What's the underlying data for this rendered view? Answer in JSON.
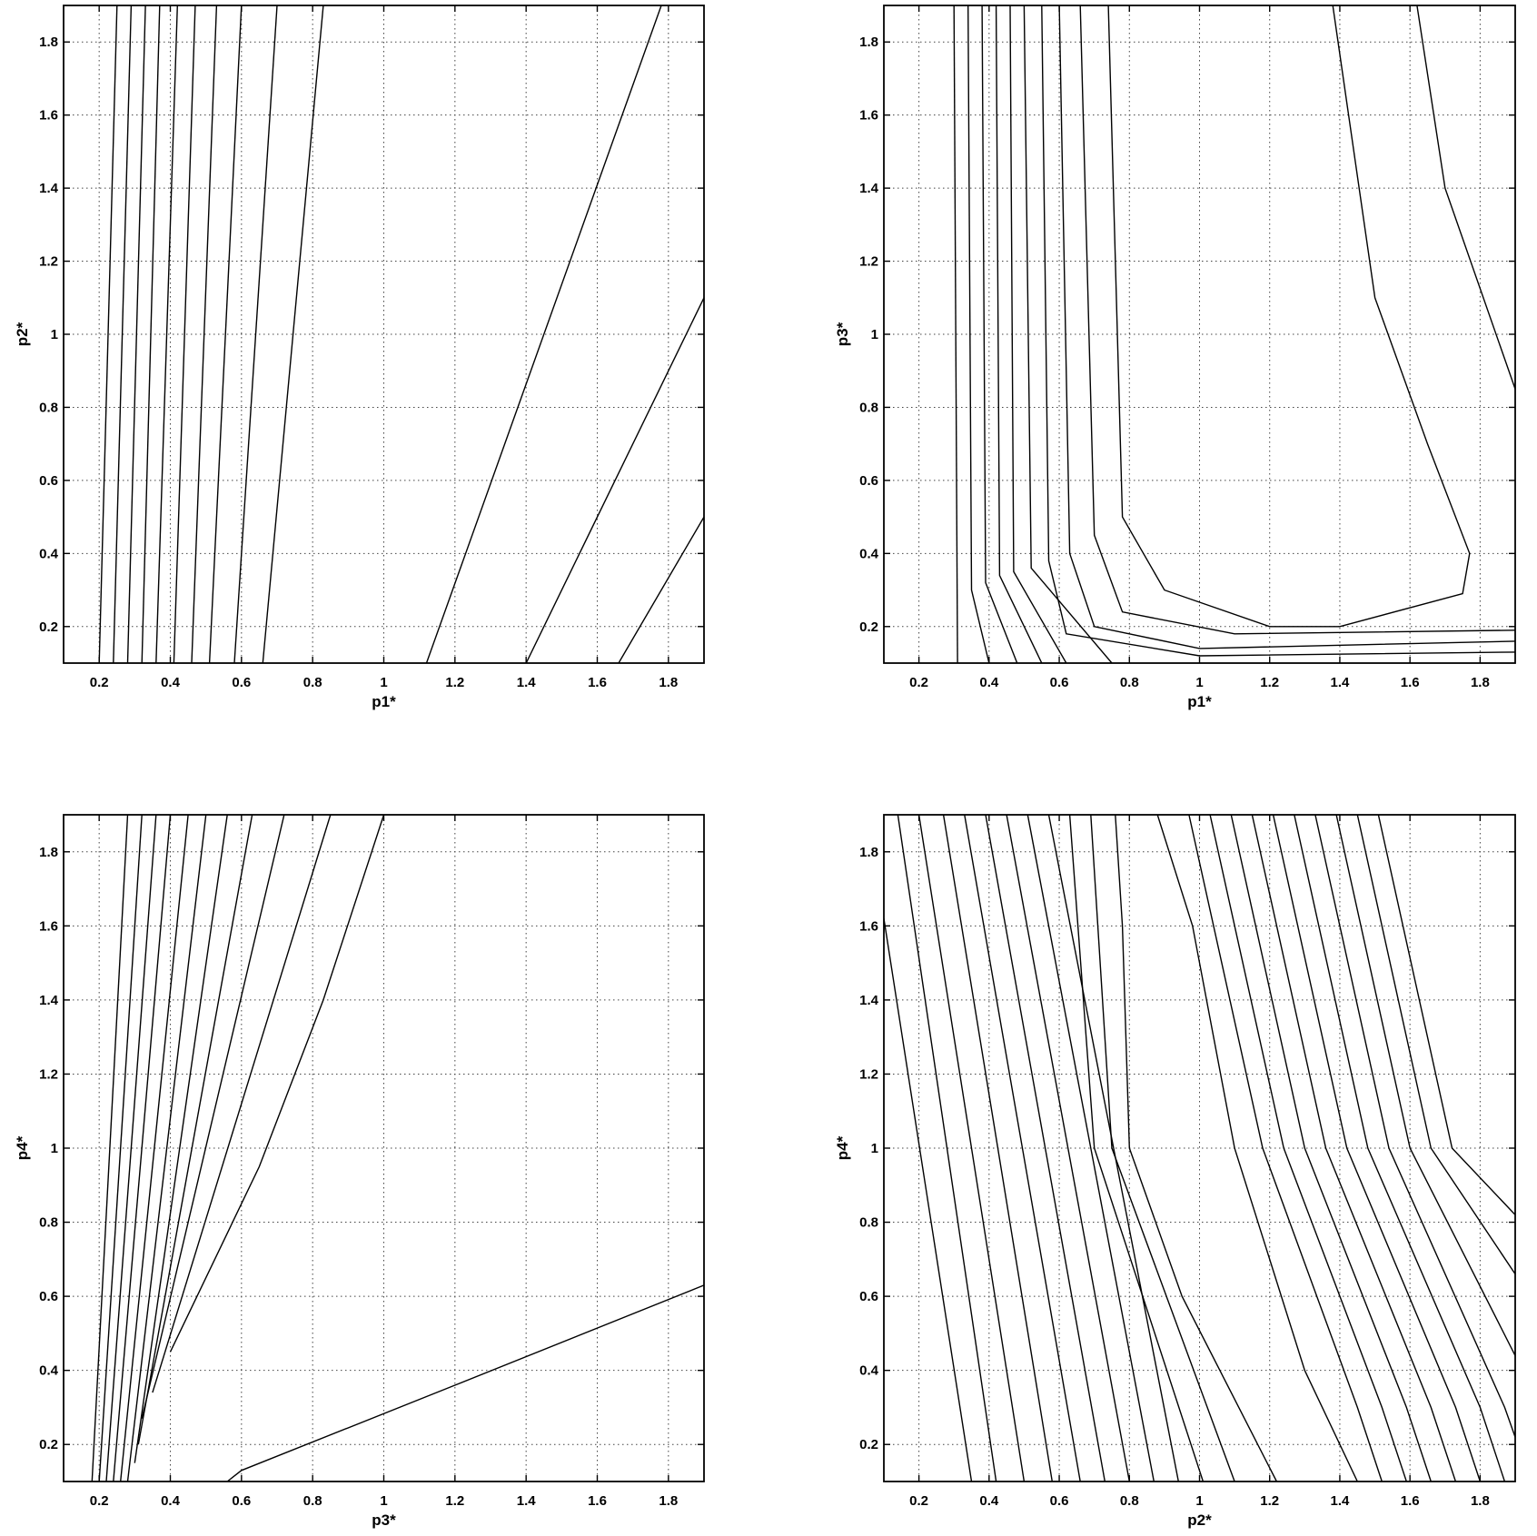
{
  "chart_data": [
    {
      "type": "contour",
      "xlabel": "p1*",
      "ylabel": "p2*",
      "xlim": [
        0.1,
        1.9
      ],
      "ylim": [
        0.1,
        1.9
      ],
      "grid": true,
      "xticks": [
        "0.2",
        "0.4",
        "0.6",
        "0.8",
        "1",
        "1.2",
        "1.4",
        "1.6",
        "1.8"
      ],
      "yticks": [
        "0.2",
        "0.4",
        "0.6",
        "0.8",
        "1",
        "1.2",
        "1.4",
        "1.6",
        "1.8"
      ],
      "contours": [
        [
          [
            0.2,
            0.1
          ],
          [
            0.25,
            1.9
          ]
        ],
        [
          [
            0.24,
            0.1
          ],
          [
            0.29,
            1.9
          ]
        ],
        [
          [
            0.28,
            0.1
          ],
          [
            0.33,
            1.9
          ]
        ],
        [
          [
            0.32,
            0.1
          ],
          [
            0.37,
            1.9
          ]
        ],
        [
          [
            0.36,
            0.1
          ],
          [
            0.42,
            1.9
          ]
        ],
        [
          [
            0.41,
            0.1
          ],
          [
            0.47,
            1.9
          ]
        ],
        [
          [
            0.46,
            0.1
          ],
          [
            0.53,
            1.9
          ]
        ],
        [
          [
            0.51,
            0.1
          ],
          [
            0.6,
            1.9
          ]
        ],
        [
          [
            0.58,
            0.1
          ],
          [
            0.7,
            1.9
          ]
        ],
        [
          [
            0.66,
            0.1
          ],
          [
            0.83,
            1.9
          ]
        ],
        [
          [
            1.12,
            0.1
          ],
          [
            1.78,
            1.9
          ]
        ],
        [
          [
            1.4,
            0.1
          ],
          [
            1.9,
            1.1
          ]
        ],
        [
          [
            1.66,
            0.1
          ],
          [
            1.9,
            0.5
          ]
        ]
      ]
    },
    {
      "type": "contour",
      "xlabel": "p1*",
      "ylabel": "p3*",
      "xlim": [
        0.1,
        1.9
      ],
      "ylim": [
        0.1,
        1.9
      ],
      "grid": true,
      "xticks": [
        "0.2",
        "0.4",
        "0.6",
        "0.8",
        "1",
        "1.2",
        "1.4",
        "1.6",
        "1.8"
      ],
      "yticks": [
        "0.2",
        "0.4",
        "0.6",
        "0.8",
        "1",
        "1.2",
        "1.4",
        "1.6",
        "1.8"
      ],
      "contours": [
        [
          [
            0.3,
            1.9
          ],
          [
            0.31,
            0.1
          ]
        ],
        [
          [
            0.34,
            1.9
          ],
          [
            0.35,
            0.3
          ],
          [
            0.4,
            0.1
          ]
        ],
        [
          [
            0.38,
            1.9
          ],
          [
            0.39,
            0.32
          ],
          [
            0.48,
            0.1
          ]
        ],
        [
          [
            0.42,
            1.9
          ],
          [
            0.43,
            0.34
          ],
          [
            0.55,
            0.1
          ]
        ],
        [
          [
            0.46,
            1.9
          ],
          [
            0.47,
            0.35
          ],
          [
            0.62,
            0.1
          ]
        ],
        [
          [
            0.5,
            1.9
          ],
          [
            0.52,
            0.36
          ],
          [
            0.75,
            0.1
          ]
        ],
        [
          [
            0.55,
            1.9
          ],
          [
            0.57,
            0.38
          ],
          [
            0.62,
            0.18
          ],
          [
            1.0,
            0.12
          ],
          [
            1.9,
            0.13
          ]
        ],
        [
          [
            0.6,
            1.9
          ],
          [
            0.63,
            0.4
          ],
          [
            0.7,
            0.2
          ],
          [
            1.0,
            0.14
          ],
          [
            1.9,
            0.16
          ]
        ],
        [
          [
            0.66,
            1.9
          ],
          [
            0.7,
            0.45
          ],
          [
            0.78,
            0.24
          ],
          [
            1.1,
            0.18
          ],
          [
            1.9,
            0.19
          ]
        ],
        [
          [
            0.74,
            1.9
          ],
          [
            0.78,
            0.5
          ],
          [
            0.9,
            0.3
          ],
          [
            1.2,
            0.2
          ],
          [
            1.4,
            0.2
          ],
          [
            1.75,
            0.29
          ],
          [
            1.77,
            0.4
          ],
          [
            1.65,
            0.7
          ],
          [
            1.5,
            1.1
          ],
          [
            1.38,
            1.9
          ]
        ],
        [
          [
            1.62,
            1.9
          ],
          [
            1.7,
            1.4
          ],
          [
            1.9,
            0.85
          ]
        ]
      ]
    },
    {
      "type": "contour",
      "xlabel": "p3*",
      "ylabel": "p4*",
      "xlim": [
        0.1,
        1.9
      ],
      "ylim": [
        0.1,
        1.9
      ],
      "grid": true,
      "xticks": [
        "0.2",
        "0.4",
        "0.6",
        "0.8",
        "1",
        "1.2",
        "1.4",
        "1.6",
        "1.8"
      ],
      "yticks": [
        "0.2",
        "0.4",
        "0.6",
        "0.8",
        "1",
        "1.2",
        "1.4",
        "1.6",
        "1.8"
      ],
      "contours": [
        [
          [
            0.18,
            0.1
          ],
          [
            0.28,
            1.9
          ]
        ],
        [
          [
            0.2,
            0.1
          ],
          [
            0.32,
            1.9
          ]
        ],
        [
          [
            0.22,
            0.1
          ],
          [
            0.36,
            1.9
          ]
        ],
        [
          [
            0.24,
            0.1
          ],
          [
            0.4,
            1.9
          ]
        ],
        [
          [
            0.26,
            0.1
          ],
          [
            0.45,
            1.9
          ]
        ],
        [
          [
            0.28,
            0.1
          ],
          [
            0.5,
            1.9
          ]
        ],
        [
          [
            0.3,
            0.15
          ],
          [
            0.56,
            1.9
          ]
        ],
        [
          [
            0.31,
            0.2
          ],
          [
            0.63,
            1.9
          ]
        ],
        [
          [
            0.32,
            0.27
          ],
          [
            0.72,
            1.9
          ]
        ],
        [
          [
            0.35,
            0.34
          ],
          [
            0.85,
            1.9
          ]
        ],
        [
          [
            0.4,
            0.45
          ],
          [
            0.65,
            0.95
          ],
          [
            0.83,
            1.4
          ],
          [
            1.0,
            1.9
          ]
        ],
        [
          [
            0.56,
            0.1
          ],
          [
            0.6,
            0.13
          ],
          [
            1.2,
            0.36
          ],
          [
            1.9,
            0.63
          ]
        ]
      ]
    },
    {
      "type": "contour",
      "xlabel": "p2*",
      "ylabel": "p4*",
      "xlim": [
        0.1,
        1.9
      ],
      "ylim": [
        0.1,
        1.9
      ],
      "grid": true,
      "xticks": [
        "0.2",
        "0.4",
        "0.6",
        "0.8",
        "1",
        "1.2",
        "1.4",
        "1.6",
        "1.8"
      ],
      "yticks": [
        "0.2",
        "0.4",
        "0.6",
        "0.8",
        "1",
        "1.2",
        "1.4",
        "1.6",
        "1.8"
      ],
      "contours": [
        [
          [
            0.1,
            1.62
          ],
          [
            0.35,
            0.1
          ]
        ],
        [
          [
            0.14,
            1.9
          ],
          [
            0.42,
            0.1
          ]
        ],
        [
          [
            0.2,
            1.9
          ],
          [
            0.5,
            0.1
          ]
        ],
        [
          [
            0.27,
            1.9
          ],
          [
            0.58,
            0.1
          ]
        ],
        [
          [
            0.33,
            1.9
          ],
          [
            0.66,
            0.1
          ]
        ],
        [
          [
            0.39,
            1.9
          ],
          [
            0.73,
            0.1
          ]
        ],
        [
          [
            0.45,
            1.9
          ],
          [
            0.8,
            0.1
          ]
        ],
        [
          [
            0.51,
            1.9
          ],
          [
            0.87,
            0.1
          ]
        ],
        [
          [
            0.57,
            1.9
          ],
          [
            0.94,
            0.1
          ]
        ],
        [
          [
            0.63,
            1.9
          ],
          [
            0.7,
            1.0
          ],
          [
            1.01,
            0.1
          ]
        ],
        [
          [
            0.69,
            1.9
          ],
          [
            0.75,
            1.0
          ],
          [
            1.1,
            0.1
          ]
        ],
        [
          [
            0.76,
            1.9
          ],
          [
            0.78,
            1.6
          ],
          [
            0.8,
            1.0
          ],
          [
            0.95,
            0.6
          ],
          [
            1.22,
            0.1
          ]
        ],
        [
          [
            0.88,
            1.9
          ],
          [
            0.98,
            1.6
          ],
          [
            1.1,
            1.0
          ],
          [
            1.3,
            0.4
          ],
          [
            1.45,
            0.1
          ]
        ],
        [
          [
            0.97,
            1.9
          ],
          [
            1.18,
            1.0
          ],
          [
            1.45,
            0.3
          ],
          [
            1.52,
            0.1
          ]
        ],
        [
          [
            1.03,
            1.9
          ],
          [
            1.24,
            1.0
          ],
          [
            1.52,
            0.3
          ],
          [
            1.59,
            0.1
          ]
        ],
        [
          [
            1.09,
            1.9
          ],
          [
            1.3,
            1.0
          ],
          [
            1.59,
            0.3
          ],
          [
            1.66,
            0.1
          ]
        ],
        [
          [
            1.15,
            1.9
          ],
          [
            1.36,
            1.0
          ],
          [
            1.66,
            0.3
          ],
          [
            1.73,
            0.1
          ]
        ],
        [
          [
            1.21,
            1.9
          ],
          [
            1.42,
            1.0
          ],
          [
            1.73,
            0.3
          ],
          [
            1.8,
            0.1
          ]
        ],
        [
          [
            1.27,
            1.9
          ],
          [
            1.48,
            1.0
          ],
          [
            1.8,
            0.3
          ],
          [
            1.87,
            0.1
          ]
        ],
        [
          [
            1.33,
            1.9
          ],
          [
            1.54,
            1.0
          ],
          [
            1.87,
            0.3
          ],
          [
            1.9,
            0.22
          ]
        ],
        [
          [
            1.39,
            1.9
          ],
          [
            1.6,
            1.0
          ],
          [
            1.9,
            0.44
          ]
        ],
        [
          [
            1.45,
            1.9
          ],
          [
            1.66,
            1.0
          ],
          [
            1.9,
            0.66
          ]
        ],
        [
          [
            1.51,
            1.9
          ],
          [
            1.72,
            1.0
          ],
          [
            1.9,
            0.82
          ]
        ]
      ]
    }
  ]
}
